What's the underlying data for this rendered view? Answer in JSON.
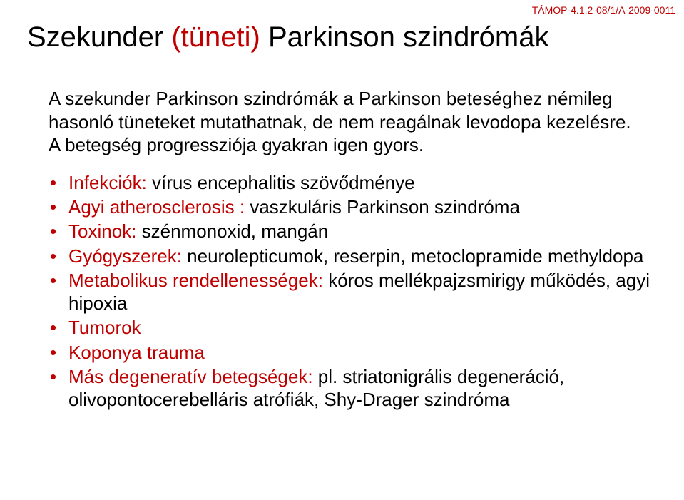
{
  "header_code": "TÁMOP-4.1.2-08/1/A-2009-0011",
  "title": {
    "black1": "Szekunder ",
    "red": "(tüneti)",
    "black2": " Parkinson szindrómák"
  },
  "intro": "A szekunder Parkinson szindrómák a Parkinson beteséghez némileg hasonló tüneteket mutathatnak, de nem reagálnak levodopa kezelésre. A betegség progressziója gyakran igen gyors.",
  "bullets": [
    {
      "label": "Infekciók:",
      "text": " vírus encephalitis szövődménye"
    },
    {
      "label": "Agyi atherosclerosis :",
      "text": " vaszkuláris Parkinson szindróma"
    },
    {
      "label": "Toxinok:",
      "text": " szénmonoxid, mangán"
    },
    {
      "label": "Gyógyszerek:",
      "text": " neurolepticumok, reserpin, metoclopramide methyldopa"
    },
    {
      "label": "Metabolikus rendellenességek:",
      "text": " kóros mellékpajzsmirigy működés, agyi hipoxia"
    },
    {
      "label": "Tumorok",
      "text": ""
    },
    {
      "label": "Koponya trauma",
      "text": ""
    },
    {
      "label": "Más degeneratív betegségek:",
      "text": " pl. striatonigrális degeneráció, olivopontocerebelláris atrófiák, Shy-Drager szindróma"
    }
  ],
  "colors": {
    "accent": "#c00000",
    "text": "#000000",
    "background": "#ffffff"
  },
  "fontsize": {
    "title": 40,
    "body": 26,
    "header_code": 14
  }
}
